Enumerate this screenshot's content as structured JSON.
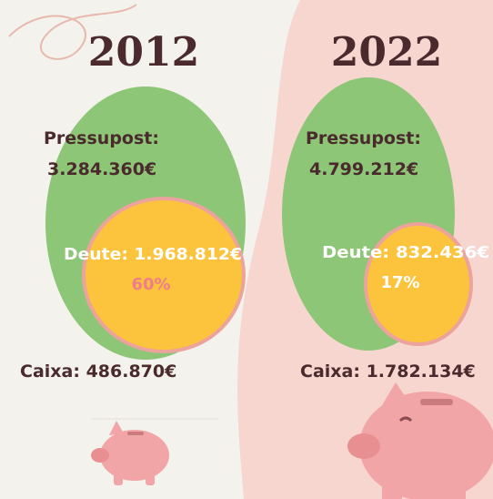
{
  "panels": [
    {
      "year": "2012",
      "budget_label": "Pressupost:",
      "budget": "3.284.360€",
      "debt": "Deute: 1.968.812€",
      "share": "60%",
      "cash": "Caixa: 486.870€"
    },
    {
      "year": "2022",
      "budget_label": "Pressupost:",
      "budget": "4.799.212€",
      "debt": "Deute: 832.436€",
      "share": "17%",
      "cash": "Caixa: 1.782.134€"
    }
  ]
}
